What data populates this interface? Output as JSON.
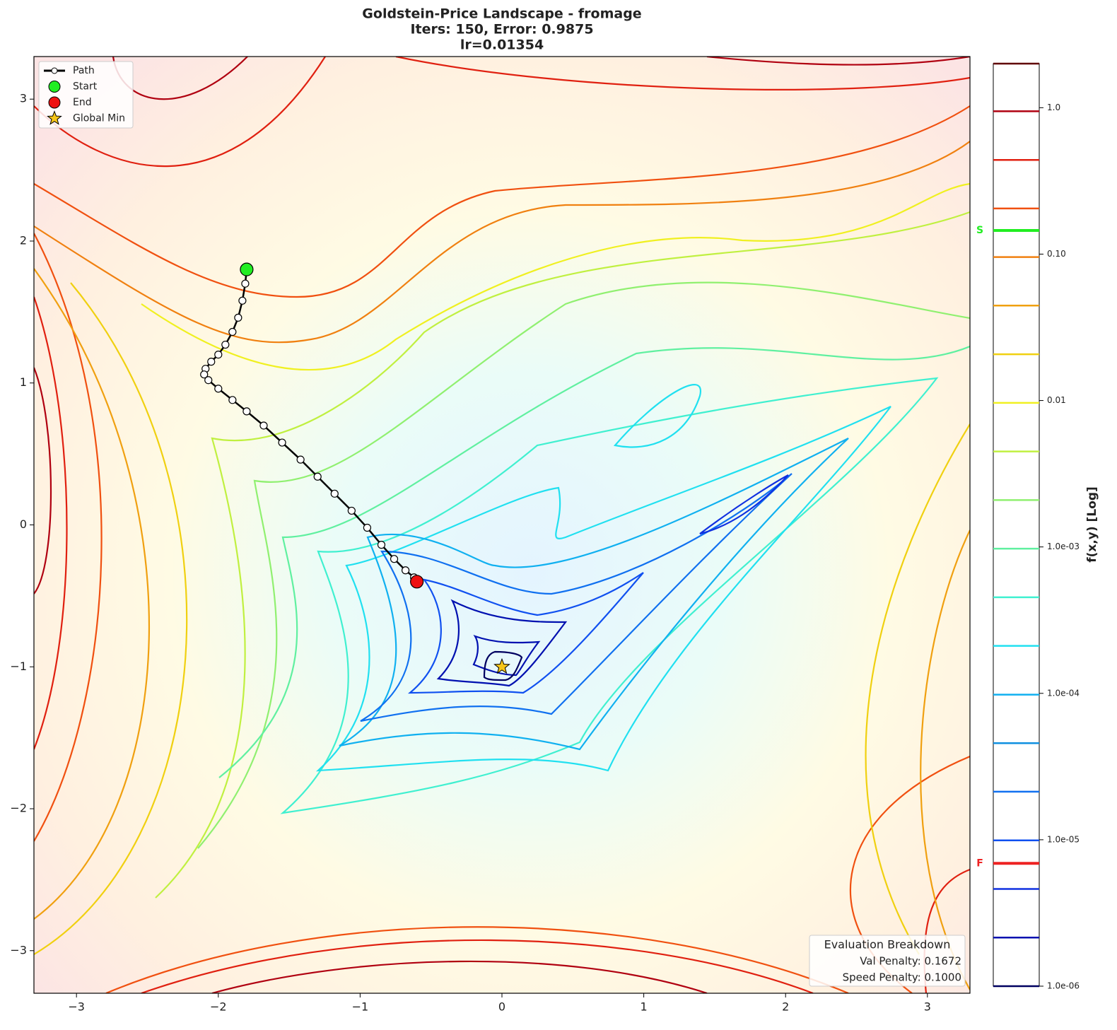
{
  "chart_data": {
    "type": "contour",
    "title": "Goldstein-Price Landscape - fromage",
    "subtitle": [
      "Iters: 150, Error: 0.9875",
      "lr=0.01354"
    ],
    "xlim": [
      -3.3,
      3.3
    ],
    "ylim": [
      -3.3,
      3.3
    ],
    "xticks": [
      {
        "value": -3,
        "label": "−3"
      },
      {
        "value": -2,
        "label": "−2"
      },
      {
        "value": -1,
        "label": "−1"
      },
      0,
      1,
      2,
      3
    ],
    "yticks": [
      {
        "value": -3,
        "label": "−3"
      },
      {
        "value": -2,
        "label": "−2"
      },
      {
        "value": -1,
        "label": "−1"
      },
      0,
      1,
      2,
      3
    ],
    "series": [
      {
        "name": "Path",
        "color": "#000000",
        "marker_fill": "#ffffff",
        "x": [
          -1.8,
          -1.81,
          -1.83,
          -1.86,
          -1.9,
          -1.95,
          -2.0,
          -2.05,
          -2.09,
          -2.1,
          -2.07,
          -2.0,
          -1.9,
          -1.8,
          -1.68,
          -1.55,
          -1.42,
          -1.3,
          -1.18,
          -1.06,
          -0.95,
          -0.85,
          -0.76,
          -0.68,
          -0.62,
          -0.6
        ],
        "values": [
          1.8,
          1.7,
          1.58,
          1.46,
          1.36,
          1.27,
          1.2,
          1.15,
          1.1,
          1.06,
          1.02,
          0.96,
          0.88,
          0.8,
          0.7,
          0.58,
          0.46,
          0.34,
          0.22,
          0.1,
          -0.02,
          -0.14,
          -0.24,
          -0.32,
          -0.37,
          -0.4
        ]
      },
      {
        "name": "Start",
        "color": "#22ee22",
        "x": [
          -1.8
        ],
        "values": [
          1.8
        ]
      },
      {
        "name": "End",
        "color": "#ee1111",
        "x": [
          -0.6
        ],
        "values": [
          -0.4
        ]
      },
      {
        "name": "Global Min",
        "color": "#f5c518",
        "x": [
          0
        ],
        "values": [
          -1
        ]
      }
    ],
    "colorbar": {
      "label": "f(x,y) [Log]",
      "log": true,
      "lim": [
        1e-06,
        2
      ],
      "ticks": [
        {
          "value": 1e-06,
          "label": "1.0e-06"
        },
        {
          "value": 1e-05,
          "label": "1.0e-05"
        },
        {
          "value": 0.0001,
          "label": "1.0e-04"
        },
        {
          "value": 0.001,
          "label": "1.0e-03"
        },
        0.01,
        {
          "value": 0.1,
          "label": "0.10"
        },
        {
          "value": 1,
          "label": "1.0"
        }
      ],
      "levels": [
        1e-06,
        2.147e-06,
        4.61e-06,
        9.9e-06,
        2.13e-05,
        4.57e-05,
        9.8e-05,
        0.000211,
        0.000453,
        0.000973,
        0.00209,
        0.00449,
        0.00964,
        0.0207,
        0.0445,
        0.0955,
        0.205,
        0.44,
        0.945,
        2
      ],
      "level_colors": [
        "#000060",
        "#0010b0",
        "#1030e0",
        "#1050f0",
        "#1070f0",
        "#1090e0",
        "#10b0f0",
        "#20e0f0",
        "#40f0d0",
        "#60f0a0",
        "#90f070",
        "#c0f040",
        "#f0f020",
        "#f0d010",
        "#f0a010",
        "#f08010",
        "#f05010",
        "#e02010",
        "#b00010",
        "#600000"
      ],
      "markers": [
        {
          "label": "S",
          "value": 0.145,
          "color": "#22ee22"
        },
        {
          "label": "F",
          "value": 6.9e-06,
          "color": "#ee2222"
        }
      ]
    },
    "annotation": {
      "title": "Evaluation Breakdown",
      "lines": [
        "Val Penalty: 0.1672",
        "Speed Penalty: 0.1000"
      ]
    }
  }
}
